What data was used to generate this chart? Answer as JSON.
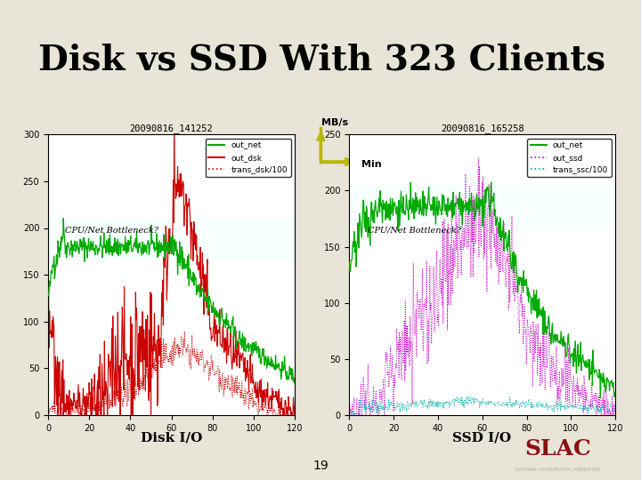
{
  "title": "Disk vs SSD With 323 Clients",
  "title_fontsize": 28,
  "title_fontweight": "bold",
  "slide_bg": "#e8e4d8",
  "left_chart": {
    "title": "20090816_141252",
    "xlabel_vals": [
      0,
      20,
      40,
      60,
      80,
      100,
      120
    ],
    "ylim": [
      0,
      300
    ],
    "yticks": [
      0,
      50,
      100,
      150,
      200,
      250,
      300
    ],
    "xlim": [
      0,
      120
    ],
    "legend": [
      "out_net",
      "out_dsk",
      "trans_dsk/100"
    ],
    "legend_colors": [
      "#00aa00",
      "#cc0000",
      "#cc0000"
    ],
    "legend_styles": [
      "-",
      "-",
      ":"
    ],
    "annotation": "CPU/Net Bottleneck?",
    "band_ymin": 168,
    "band_ymax": 210
  },
  "right_chart": {
    "title": "20090816_165258",
    "xlabel_vals": [
      0,
      20,
      40,
      60,
      80,
      100,
      120
    ],
    "ylim": [
      0,
      250
    ],
    "yticks": [
      0,
      50,
      100,
      150,
      200,
      250
    ],
    "xlim": [
      0,
      120
    ],
    "legend": [
      "out_net",
      "out_ssd",
      "trans_ssc/100"
    ],
    "legend_colors": [
      "#00aa00",
      "#cc00cc",
      "#00bbbb"
    ],
    "legend_styles": [
      "-",
      ":",
      ":"
    ],
    "annotation": "CPU/Net Bottleneck?",
    "band_ymin": 170,
    "band_ymax": 205
  },
  "mb_s_label": "MB/s",
  "min_label": "Min",
  "disk_io_label": "Disk I/O",
  "ssd_io_label": "SSD I/O",
  "page_number": "19",
  "arrow_color": "#b8b800",
  "left_bar_color": "#555566",
  "divider_color": "#333333"
}
